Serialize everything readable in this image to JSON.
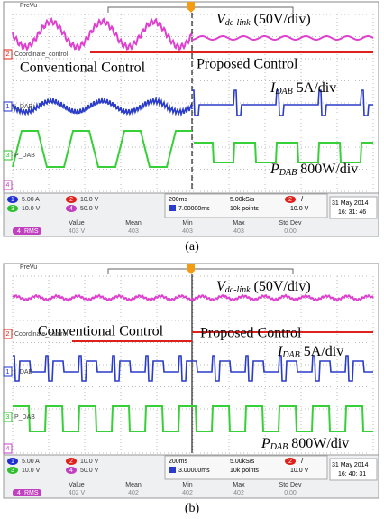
{
  "panels": [
    {
      "prevu": "PreVu",
      "vdc": {
        "symbol": "V",
        "subscript": "dc-link",
        "scale": "(50V/div)"
      },
      "conventional": "Conventional Control",
      "proposed": "Proposed Control",
      "idab": {
        "symbol": "I",
        "subscript": "DAB",
        "scale": "5A/div"
      },
      "pdab": {
        "symbol": "P",
        "subscript": "DAB",
        "scale": "800W/div"
      },
      "channels": [
        {
          "id": "2",
          "label": "Coordinate_control"
        },
        {
          "id": "1",
          "label": "I_DAB"
        },
        {
          "id": "3",
          "label": "P_DAB"
        },
        {
          "id": "4"
        }
      ],
      "settings": [
        {
          "id": "1",
          "value": "5.00 A"
        },
        {
          "id": "2",
          "value": "10.0 V"
        },
        {
          "id": "3",
          "value": "10.0 V"
        },
        {
          "id": "4",
          "value": "50.0 V"
        }
      ],
      "timebase": "200ms",
      "sample_rate": "5.00kS/s",
      "trigger_channel": "2",
      "trigger_slope": "/",
      "delay": "7.00000ms",
      "record": "10k points",
      "trigger_level": "10.0 V",
      "date": "31 May  2014",
      "time": "16: 31: 46",
      "measure": {
        "headers": [
          "Value",
          "Mean",
          "Min",
          "Max",
          "Std Dev"
        ],
        "channel": "4",
        "name": "RMS",
        "row": [
          "403 V",
          "403",
          "403",
          "403",
          "0.00"
        ]
      },
      "caption": "(a)"
    },
    {
      "prevu": "PreVu",
      "vdc": {
        "symbol": "V",
        "subscript": "dc-link",
        "scale": "(50V/div)"
      },
      "conventional": "Conventional Control",
      "proposed": "Proposed Control",
      "idab": {
        "symbol": "I",
        "subscript": "DAB",
        "scale": "5A/div"
      },
      "pdab": {
        "symbol": "P",
        "subscript": "DAB",
        "scale": "800W/div"
      },
      "channels": [
        {
          "id": "2",
          "label": "Coordinate_control"
        },
        {
          "id": "1",
          "label": "I_DAB"
        },
        {
          "id": "3",
          "label": "P_DAB"
        },
        {
          "id": "4"
        }
      ],
      "settings": [
        {
          "id": "1",
          "value": "5.00 A"
        },
        {
          "id": "2",
          "value": "10.0 V"
        },
        {
          "id": "3",
          "value": "10.0 V"
        },
        {
          "id": "4",
          "value": "50.0 V"
        }
      ],
      "timebase": "200ms",
      "sample_rate": "5.00kS/s",
      "trigger_channel": "2",
      "trigger_slope": "/",
      "delay": "3.00000ms",
      "record": "10k points",
      "trigger_level": "10.0 V",
      "date": "31 May  2014",
      "time": "16: 40: 31",
      "measure": {
        "headers": [
          "Value",
          "Mean",
          "Min",
          "Max",
          "Std Dev"
        ],
        "channel": "4",
        "name": "RMS",
        "row": [
          "402 V",
          "402",
          "402",
          "402",
          "0.00"
        ]
      },
      "caption": "(b)"
    }
  ]
}
